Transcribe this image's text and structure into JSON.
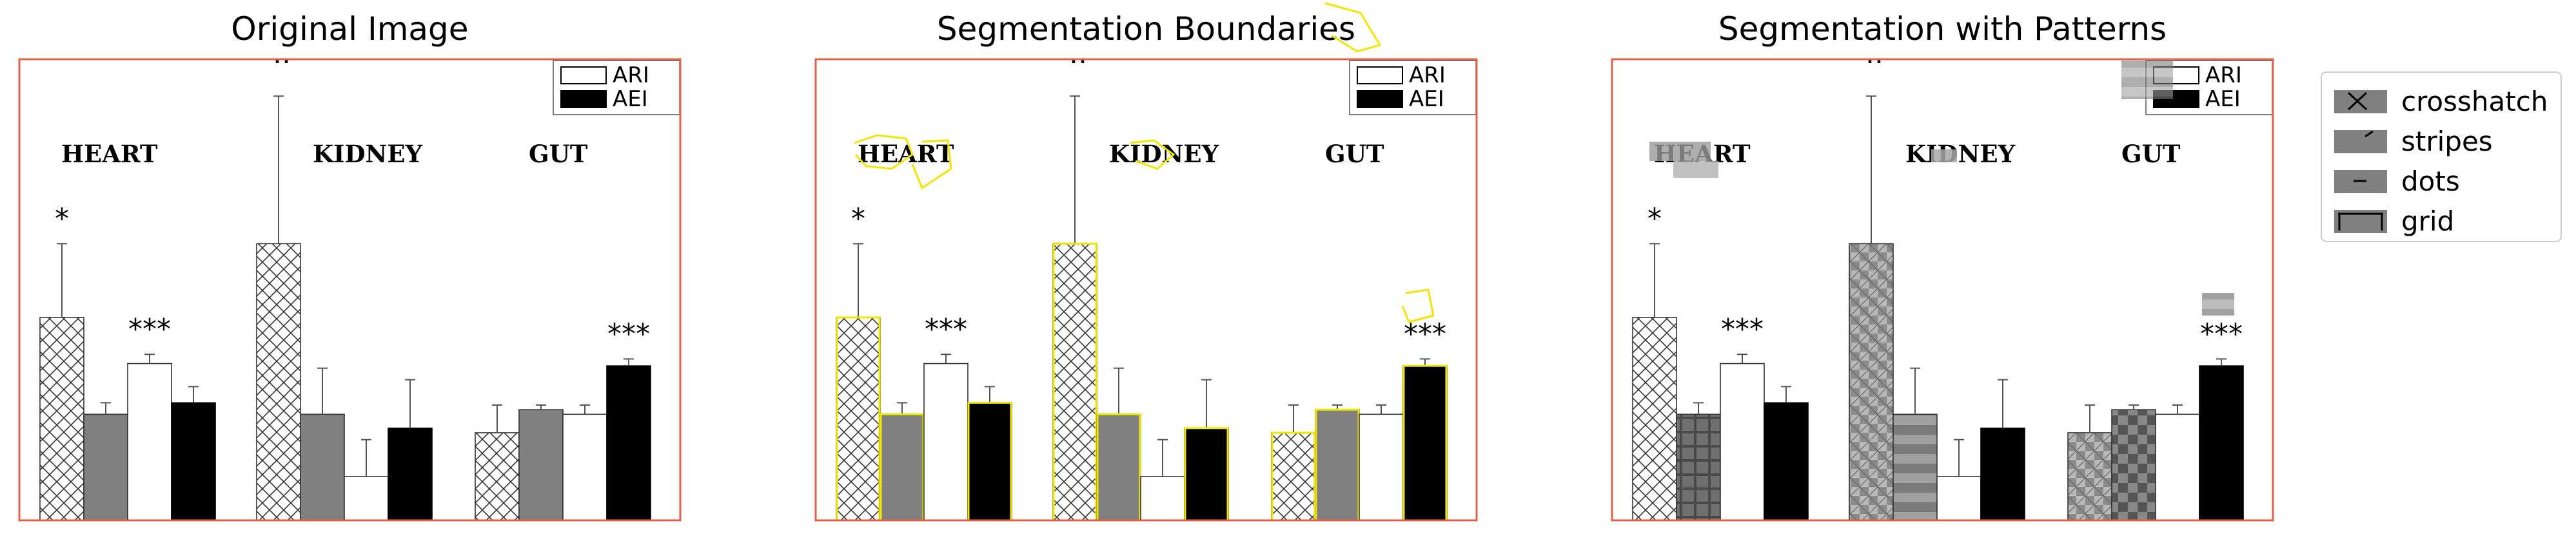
{
  "panels": [
    {
      "title": "Original Image"
    },
    {
      "title": "Segmentation Boundaries"
    },
    {
      "title": "Segmentation with Patterns"
    }
  ],
  "colors": {
    "frame": "#e0634a",
    "bar_gray": "#808080",
    "bar_black": "#000000",
    "outline_yellow": "#f2e600",
    "error_bar": "#555555"
  },
  "chart_data": {
    "type": "bar",
    "groups": [
      "HEART",
      "KIDNEY",
      "GUT"
    ],
    "ylim": [
      0,
      10
    ],
    "series": [
      {
        "name": "",
        "fill": "crosshatch",
        "values": [
          4.4,
          6.0,
          1.9
        ],
        "errors": [
          1.6,
          3.2,
          0.6
        ]
      },
      {
        "name": "",
        "fill": "gray",
        "values": [
          2.3,
          2.3,
          2.4
        ],
        "errors": [
          0.25,
          1.0,
          0.1
        ]
      },
      {
        "name": "ARI",
        "fill": "white",
        "values": [
          3.4,
          0.95,
          2.3
        ],
        "errors": [
          0.2,
          0.8,
          0.2
        ]
      },
      {
        "name": "AEI",
        "fill": "black",
        "values": [
          2.55,
          2.0,
          3.35
        ],
        "errors": [
          0.35,
          1.05,
          0.15
        ]
      }
    ],
    "significance": [
      {
        "group": "HEART",
        "series": 0,
        "label": "*"
      },
      {
        "group": "HEART",
        "series": 2,
        "label": "***"
      },
      {
        "group": "GUT",
        "series": 3,
        "label": "***"
      }
    ],
    "inner_legend": [
      "ARI",
      "AEI"
    ],
    "pattern_legend": [
      "crosshatch",
      "stripes",
      "dots",
      "grid"
    ],
    "pattern_legend_icons": [
      "x-glyph-icon",
      "slash-glyph-icon",
      "dash-glyph-icon",
      "tee-glyph-icon"
    ]
  }
}
